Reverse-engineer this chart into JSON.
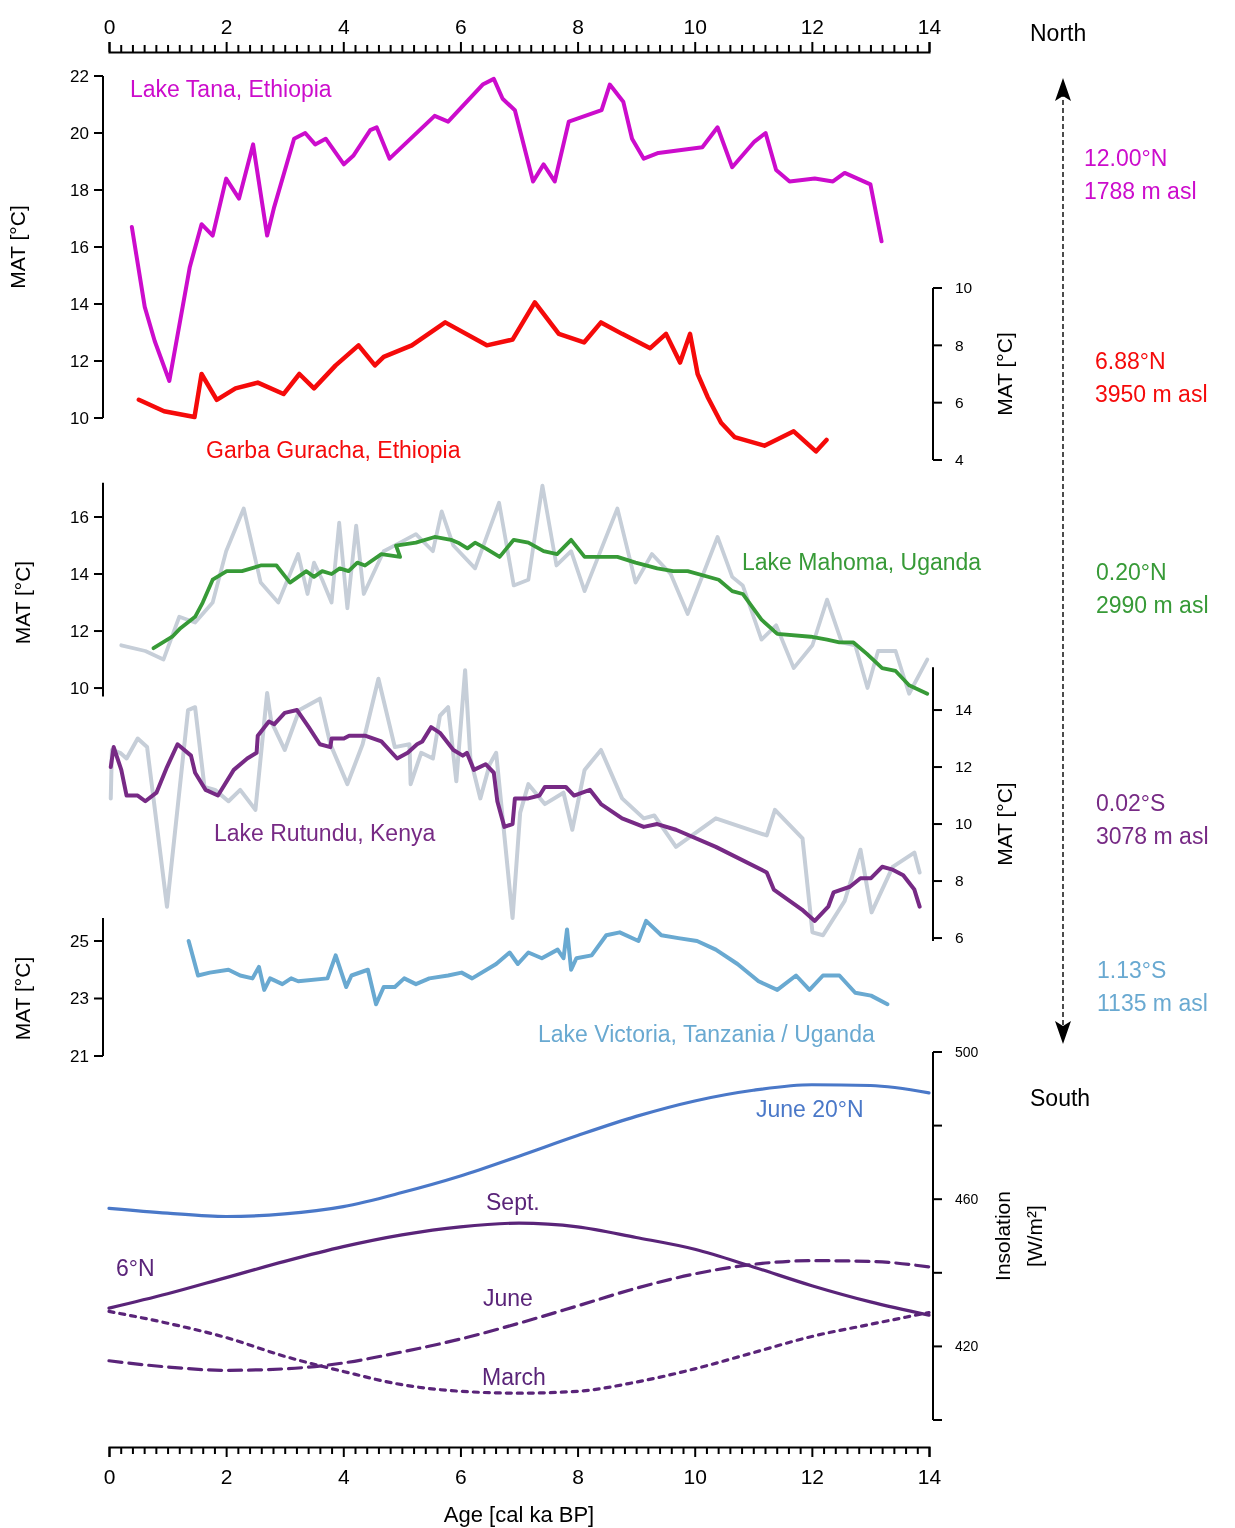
{
  "chart_data": [
    {
      "type": "line",
      "xlim": [
        0,
        14
      ],
      "xticks": [
        0,
        2,
        4,
        6,
        8,
        10,
        12,
        14
      ],
      "ylabel": "MAT [°C]",
      "ylim": [
        10,
        22
      ],
      "yticks": [
        10,
        12,
        14,
        16,
        18,
        20,
        22
      ],
      "annotations": [
        "12.00°N",
        "1788 m asl",
        "North"
      ],
      "series": [
        {
          "name": "Lake Tana, Ethiopia",
          "color": "#cc0ccc",
          "x": [
            0.39,
            0.61,
            0.78,
            1.03,
            1.38,
            1.58,
            1.77,
            2.0,
            2.22,
            2.46,
            2.7,
            2.82,
            3.16,
            3.35,
            3.52,
            3.7,
            4.01,
            4.17,
            4.46,
            4.57,
            4.79,
            5.56,
            5.79,
            6.38,
            6.57,
            6.72,
            6.93,
            7.24,
            7.42,
            7.61,
            7.85,
            8.41,
            8.55,
            8.78,
            8.93,
            9.13,
            9.38,
            10.13,
            10.39,
            10.64,
            11.02,
            11.21,
            11.39,
            11.62,
            12.05,
            12.36,
            12.56,
            13.0,
            13.19
          ],
          "values": [
            16.7,
            13.9,
            12.7,
            11.3,
            15.3,
            16.8,
            16.4,
            18.4,
            17.7,
            19.6,
            16.4,
            17.4,
            19.8,
            20.0,
            19.6,
            19.8,
            18.9,
            19.2,
            20.1,
            20.2,
            19.1,
            20.6,
            20.4,
            21.7,
            21.9,
            21.2,
            20.8,
            18.3,
            18.9,
            18.3,
            20.4,
            20.8,
            21.7,
            21.1,
            19.8,
            19.1,
            19.3,
            19.5,
            20.2,
            18.8,
            19.7,
            20.0,
            18.7,
            18.3,
            18.4,
            18.3,
            18.6,
            18.2,
            16.2
          ]
        }
      ]
    },
    {
      "type": "line",
      "xlim": [
        0,
        14
      ],
      "tick_labels": "y",
      "ylabel": "MAT [°C]",
      "ylim": [
        4,
        10
      ],
      "yticks": [
        4,
        6,
        8,
        10
      ],
      "annotations": [
        "6.88°N",
        "3950 m asl"
      ],
      "series": [
        {
          "name": "Garba Guracha, Ethiopia",
          "color": "#f50a0a",
          "x": [
            0.51,
            0.94,
            1.46,
            1.58,
            1.84,
            2.16,
            2.54,
            2.98,
            3.25,
            3.5,
            3.87,
            4.26,
            4.54,
            4.69,
            5.17,
            5.74,
            6.45,
            6.89,
            7.27,
            7.68,
            8.11,
            8.4,
            8.76,
            9.24,
            9.51,
            9.75,
            9.92,
            10.05,
            10.22,
            10.45,
            10.68,
            11.19,
            11.69,
            12.07,
            12.25
          ],
          "values": [
            6.1,
            5.7,
            5.5,
            7.0,
            6.1,
            6.5,
            6.7,
            6.3,
            7.0,
            6.5,
            7.3,
            8.0,
            7.3,
            7.6,
            8.0,
            8.8,
            8.0,
            8.2,
            9.5,
            8.4,
            8.1,
            8.8,
            8.4,
            7.9,
            8.4,
            7.4,
            8.4,
            7.0,
            6.2,
            5.3,
            4.8,
            4.5,
            5.0,
            4.3,
            4.7
          ]
        }
      ]
    },
    {
      "type": "line",
      "xlim": [
        0,
        14
      ],
      "tick_labels": "y",
      "ylabel": "MAT [°C]",
      "ylim": [
        9.7,
        17.2
      ],
      "yticks": [
        10,
        12,
        14,
        16
      ],
      "annotations": [
        "0.20°N",
        "2990 m asl"
      ],
      "series": [
        {
          "color": "#c6ced8",
          "x": [
            0.21,
            0.62,
            0.93,
            1.2,
            1.47,
            1.77,
            2.0,
            2.3,
            2.59,
            2.89,
            3.23,
            3.39,
            3.5,
            3.64,
            3.8,
            3.93,
            4.07,
            4.22,
            4.35,
            4.69,
            4.97,
            5.24,
            5.53,
            5.68,
            5.88,
            6.25,
            6.66,
            6.91,
            7.16,
            7.4,
            7.64,
            7.89,
            8.12,
            8.68,
            8.99,
            9.27,
            9.59,
            9.88,
            10.39,
            10.64,
            10.82,
            11.14,
            11.39,
            11.69,
            12.01,
            12.26,
            12.51,
            12.74,
            12.95,
            13.13,
            13.43,
            13.66,
            13.97
          ],
          "values": [
            11.5,
            11.3,
            11.0,
            12.5,
            12.3,
            13.0,
            14.8,
            16.3,
            13.7,
            13.0,
            14.7,
            13.3,
            14.4,
            13.8,
            13.0,
            15.8,
            12.8,
            15.7,
            13.3,
            14.8,
            15.1,
            15.4,
            14.8,
            16.2,
            15.0,
            14.2,
            16.5,
            13.6,
            13.8,
            17.1,
            14.3,
            14.8,
            13.4,
            16.3,
            13.7,
            14.7,
            14.0,
            12.6,
            15.3,
            13.9,
            13.6,
            11.7,
            12.2,
            10.7,
            11.5,
            13.1,
            11.6,
            11.5,
            10.0,
            11.3,
            11.3,
            9.8,
            11.0
          ]
        },
        {
          "name": "Lake Mahoma, Uganda",
          "color": "#379a37",
          "x": [
            0.76,
            1.08,
            1.22,
            1.47,
            1.6,
            1.77,
            2.01,
            2.27,
            2.59,
            2.86,
            3.09,
            3.37,
            3.5,
            3.64,
            3.8,
            3.94,
            4.09,
            4.24,
            4.37,
            4.65,
            4.97,
            4.9,
            5.24,
            5.56,
            5.84,
            5.96,
            6.12,
            6.25,
            6.43,
            6.67,
            6.91,
            7.16,
            7.42,
            7.65,
            7.89,
            8.12,
            8.68,
            8.99,
            9.36,
            9.63,
            9.88,
            10.41,
            10.64,
            10.82,
            11.14,
            11.41,
            11.98,
            12.26,
            12.47,
            12.71,
            12.94,
            13.2,
            13.43,
            13.66,
            13.97
          ],
          "values": [
            11.4,
            11.8,
            12.1,
            12.5,
            13.0,
            13.8,
            14.1,
            14.1,
            14.3,
            14.3,
            13.7,
            14.1,
            13.9,
            14.1,
            14.0,
            14.2,
            14.1,
            14.4,
            14.3,
            14.7,
            14.6,
            15.0,
            15.1,
            15.3,
            15.2,
            15.1,
            14.9,
            15.1,
            14.9,
            14.6,
            15.2,
            15.1,
            14.8,
            14.7,
            15.2,
            14.6,
            14.6,
            14.4,
            14.2,
            14.1,
            14.1,
            13.8,
            13.4,
            13.3,
            12.4,
            11.9,
            11.8,
            11.7,
            11.6,
            11.6,
            11.2,
            10.7,
            10.6,
            10.1,
            9.8
          ]
        }
      ]
    },
    {
      "type": "line",
      "xlim": [
        0,
        14
      ],
      "tick_labels": "y",
      "ylabel": "MAT [°C]",
      "ylim": [
        5.9,
        15.5
      ],
      "yticks": [
        6,
        8,
        10,
        12,
        14
      ],
      "annotations": [
        "0.02°S",
        "3078 m asl"
      ],
      "series": [
        {
          "color": "#c6ced8",
          "x": [
            0.03,
            0.05,
            0.19,
            0.3,
            0.49,
            0.65,
            0.76,
            0.99,
            1.35,
            1.47,
            1.63,
            1.81,
            2.04,
            2.24,
            2.5,
            2.7,
            2.77,
            3.0,
            3.25,
            3.6,
            3.78,
            4.07,
            4.33,
            4.6,
            4.88,
            5.13,
            5.15,
            5.33,
            5.53,
            5.65,
            5.79,
            5.93,
            6.08,
            6.17,
            6.34,
            6.5,
            6.61,
            6.89,
            7.02,
            7.16,
            7.44,
            7.76,
            7.91,
            8.12,
            8.4,
            8.76,
            9.13,
            9.31,
            9.68,
            10.36,
            11.23,
            11.37,
            11.84,
            12.01,
            12.19,
            12.56,
            12.83,
            13.02,
            13.38,
            13.75,
            13.84
          ],
          "values": [
            10.9,
            12.6,
            12.5,
            12.3,
            13.0,
            12.7,
            10.9,
            7.1,
            14.0,
            14.1,
            11.3,
            11.2,
            10.8,
            11.2,
            10.5,
            14.6,
            13.6,
            12.6,
            14.0,
            14.4,
            12.8,
            11.4,
            12.8,
            15.1,
            12.7,
            12.8,
            11.4,
            12.5,
            12.3,
            13.8,
            14.1,
            11.5,
            15.4,
            12.3,
            10.9,
            12.1,
            12.5,
            6.7,
            10.4,
            11.4,
            10.7,
            11.1,
            9.8,
            11.9,
            12.6,
            10.9,
            10.2,
            10.3,
            9.2,
            10.2,
            9.6,
            10.5,
            9.5,
            6.2,
            6.1,
            7.3,
            9.1,
            6.9,
            8.5,
            9.0,
            8.3
          ]
        },
        {
          "name": "Lake Rutundu, Kenya",
          "color": "#772a85",
          "x": [
            0.03,
            0.08,
            0.21,
            0.3,
            0.49,
            0.62,
            0.81,
            0.99,
            1.17,
            1.4,
            1.47,
            1.65,
            1.86,
            2.13,
            2.36,
            2.52,
            2.54,
            2.73,
            2.82,
            3.0,
            3.21,
            3.41,
            3.6,
            3.78,
            3.8,
            4.01,
            4.1,
            4.37,
            4.65,
            4.92,
            5.1,
            5.26,
            5.35,
            5.5,
            5.65,
            5.88,
            6.04,
            6.11,
            6.23,
            6.43,
            6.57,
            6.63,
            6.71,
            6.75,
            6.89,
            6.93,
            7.16,
            7.35,
            7.44,
            7.8,
            7.94,
            8.21,
            8.4,
            8.76,
            9.13,
            9.36,
            9.68,
            10.36,
            11.23,
            11.35,
            11.83,
            12.05,
            12.28,
            12.37,
            12.65,
            12.83,
            13.01,
            13.2,
            13.38,
            13.56,
            13.75,
            13.84
          ],
          "values": [
            12.0,
            12.7,
            11.9,
            11.0,
            11.0,
            10.8,
            11.1,
            12.0,
            12.8,
            12.4,
            11.8,
            11.2,
            11.0,
            11.9,
            12.3,
            12.5,
            13.1,
            13.6,
            13.5,
            13.9,
            14.0,
            13.4,
            12.8,
            12.7,
            13.0,
            13.0,
            13.1,
            13.1,
            12.9,
            12.3,
            12.5,
            12.8,
            12.9,
            13.4,
            13.2,
            12.6,
            12.4,
            12.5,
            11.9,
            12.1,
            11.8,
            10.8,
            10.2,
            9.9,
            10.0,
            10.9,
            10.9,
            11.0,
            11.3,
            11.3,
            11.0,
            11.2,
            10.7,
            10.2,
            9.9,
            10.0,
            9.8,
            9.2,
            8.3,
            7.7,
            7.0,
            6.6,
            7.1,
            7.6,
            7.8,
            8.1,
            8.1,
            8.5,
            8.4,
            8.2,
            7.7,
            7.1
          ]
        }
      ]
    },
    {
      "type": "line",
      "xlim": [
        0,
        14
      ],
      "tick_labels": "y",
      "ylabel": "MAT [°C]",
      "ylim": [
        21,
        25.8
      ],
      "yticks": [
        21,
        23,
        25
      ],
      "annotations": [
        "1.13°S",
        "1135 m asl"
      ],
      "series": [
        {
          "name": "Lake Victoria, Tanzania / Uganda",
          "color": "#69a9d1",
          "x": [
            1.36,
            1.52,
            1.72,
            2.04,
            2.24,
            2.45,
            2.56,
            2.65,
            2.75,
            2.96,
            3.11,
            3.23,
            3.73,
            3.87,
            4.05,
            4.14,
            4.42,
            4.56,
            4.69,
            4.88,
            5.04,
            5.24,
            5.47,
            5.79,
            6.02,
            6.2,
            6.61,
            6.84,
            6.98,
            7.16,
            7.39,
            7.66,
            7.76,
            7.82,
            7.89,
            7.98,
            8.24,
            8.49,
            8.72,
            9.04,
            9.17,
            9.43,
            9.72,
            10.04,
            10.36,
            10.73,
            11.09,
            11.41,
            11.73,
            11.96,
            12.19,
            12.47,
            12.74,
            13.01,
            13.29
          ],
          "values": [
            25.0,
            23.8,
            23.9,
            24.0,
            23.8,
            23.7,
            24.1,
            23.3,
            23.7,
            23.5,
            23.7,
            23.6,
            23.7,
            24.5,
            23.4,
            23.8,
            24.0,
            22.8,
            23.4,
            23.4,
            23.7,
            23.5,
            23.7,
            23.8,
            23.9,
            23.7,
            24.2,
            24.6,
            24.2,
            24.6,
            24.4,
            24.7,
            24.4,
            25.4,
            24.0,
            24.4,
            24.5,
            25.2,
            25.3,
            25.0,
            25.7,
            25.2,
            25.1,
            25.0,
            24.7,
            24.2,
            23.6,
            23.3,
            23.8,
            23.3,
            23.8,
            23.8,
            23.2,
            23.1,
            22.8
          ]
        }
      ]
    },
    {
      "type": "line",
      "xlim": [
        0,
        14
      ],
      "xticks": [
        0,
        2,
        4,
        6,
        8,
        10,
        12,
        14
      ],
      "xlabel": "Age [cal ka BP]",
      "ylabel": "Insolation [W/m²]",
      "ylim": [
        400,
        500
      ],
      "yticks": [
        {
          "value": 400,
          "label": null
        },
        420,
        {
          "value": 440,
          "label": null
        },
        460,
        {
          "value": 480,
          "label": null
        },
        500
      ],
      "annotations": [
        "6°N",
        "South"
      ],
      "x": [
        0,
        1,
        2,
        3,
        4,
        5,
        6,
        7,
        8,
        9,
        10,
        11,
        12,
        13,
        14
      ],
      "series": [
        {
          "name": "June 20°N",
          "color": "#4a78c8",
          "line_style": "solid",
          "values": [
            457.5,
            456.2,
            455.3,
            456.0,
            458.0,
            461.8,
            466.3,
            471.7,
            477.3,
            482.5,
            486.7,
            489.6,
            491.1,
            490.9,
            488.9
          ]
        },
        {
          "name": "Sept.",
          "color": "#5a2479",
          "line_style": "solid",
          "values": [
            430.4,
            434.3,
            438.7,
            443.1,
            447.1,
            450.3,
            452.5,
            453.5,
            452.5,
            449.6,
            446.4,
            441.6,
            436.5,
            432.1,
            428.5
          ]
        },
        {
          "name": "June",
          "color": "#5a2479",
          "line_style": "dashed",
          "values": [
            416.1,
            414.4,
            413.5,
            413.9,
            415.5,
            418.5,
            422.0,
            426.3,
            431.0,
            435.8,
            439.7,
            442.3,
            443.3,
            443.1,
            441.6
          ]
        },
        {
          "name": "March",
          "color": "#5a2479",
          "line_style": "dotted",
          "values": [
            429.5,
            426.3,
            422.4,
            417.3,
            413.2,
            409.6,
            407.8,
            407.3,
            407.8,
            410.3,
            413.9,
            418.3,
            422.7,
            426.0,
            429.2
          ]
        }
      ]
    }
  ]
}
